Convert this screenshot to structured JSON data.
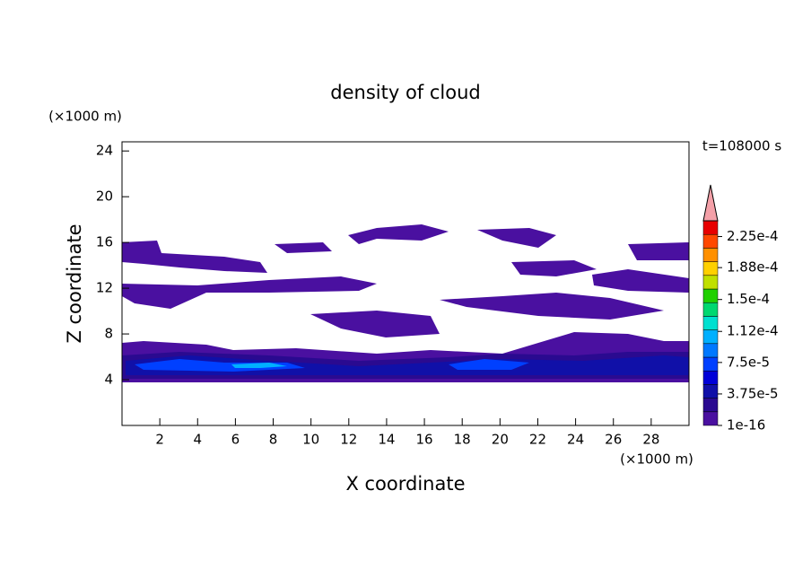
{
  "chart_data": {
    "type": "contour",
    "title": "density of cloud",
    "x_label": "X coordinate",
    "y_label": "Z coordinate",
    "x_unit": "(×1000 m)",
    "y_unit": "(×1000 m)",
    "time_label": "t=108000 s",
    "xlim": [
      0,
      30
    ],
    "ylim": [
      0,
      24.8
    ],
    "xticks": [
      2,
      4,
      6,
      8,
      10,
      12,
      14,
      16,
      18,
      20,
      22,
      24,
      26,
      28
    ],
    "yticks": [
      4,
      8,
      12,
      16,
      20,
      24
    ],
    "colorbar": {
      "lim": [
        0,
        0.00024375
      ],
      "ticks": [
        {
          "value": 1e-16,
          "label": "1e-16"
        },
        {
          "value": 3.75e-05,
          "label": "3.75e-5"
        },
        {
          "value": 7.5e-05,
          "label": "7.5e-5"
        },
        {
          "value": 0.000112,
          "label": "1.12e-4"
        },
        {
          "value": 0.00015,
          "label": "1.5e-4"
        },
        {
          "value": 0.000188,
          "label": "1.88e-4"
        },
        {
          "value": 0.000225,
          "label": "2.25e-4"
        }
      ],
      "colors": [
        "#4a10a0",
        "#2a0a90",
        "#1010a8",
        "#0000d8",
        "#0040ff",
        "#0078ff",
        "#00b0ff",
        "#00e0d0",
        "#00d870",
        "#20d000",
        "#c0e000",
        "#ffd000",
        "#ff9000",
        "#ff4800",
        "#e80000"
      ],
      "extend_color": "#f4a0a8"
    }
  }
}
